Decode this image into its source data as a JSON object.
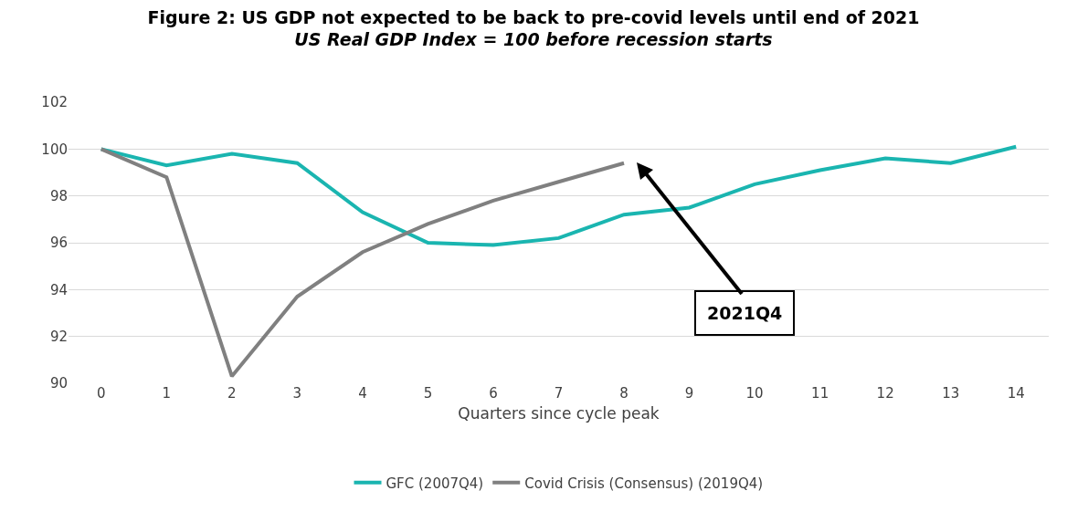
{
  "chart_data": {
    "type": "line",
    "title": "Figure 2: US GDP not expected to be back to pre-covid levels until end of 2021",
    "subtitle": "US Real GDP Index = 100 before recession starts",
    "xlabel": "Quarters since cycle peak",
    "x": [
      0,
      1,
      2,
      3,
      4,
      5,
      6,
      7,
      8,
      9,
      10,
      11,
      12,
      13,
      14
    ],
    "series": [
      {
        "name": "GFC (2007Q4)",
        "color": "#1ab5b0",
        "values": [
          100,
          99.3,
          99.8,
          99.4,
          97.3,
          96.0,
          95.9,
          96.2,
          97.2,
          97.5,
          98.5,
          99.1,
          99.6,
          99.4,
          100.1
        ]
      },
      {
        "name": "Covid Crisis (Consensus) (2019Q4)",
        "color": "#808080",
        "values": [
          100,
          98.8,
          90.3,
          93.7,
          95.6,
          96.8,
          97.8,
          98.6,
          99.4,
          null,
          null,
          null,
          null,
          null,
          null
        ]
      }
    ],
    "xlim": [
      -0.5,
      14.5
    ],
    "xticks": [
      0,
      1,
      2,
      3,
      4,
      5,
      6,
      7,
      8,
      9,
      10,
      11,
      12,
      13,
      14
    ],
    "ylim": [
      90,
      102
    ],
    "yticks": [
      90,
      92,
      94,
      96,
      98,
      100,
      102
    ],
    "grid": "y",
    "legend": "bottom",
    "marker": "none",
    "line_style": "solid",
    "annotations": [
      "2021Q4"
    ]
  }
}
